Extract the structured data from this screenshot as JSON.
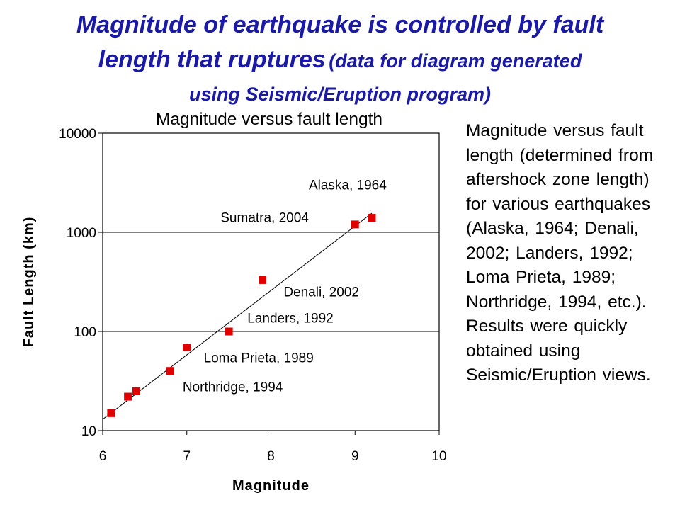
{
  "slide": {
    "title_line1": "Magnitude of earthquake is controlled by fault",
    "title_line2_main": "length that ruptures",
    "title_line2_sub": "(data for diagram generated",
    "title_line3": "using Seismic/Eruption program)"
  },
  "side_text": "Magnitude versus fault length (determined from aftershock zone length) for various earthquakes (Alaska, 1964; Denali, 2002; Landers, 1992; Loma Prieta, 1989; Northridge, 1994, etc.).  Results were quickly obtained using Seismic/Eruption views.",
  "chart_data": {
    "type": "scatter",
    "title": "Magnitude versus fault length",
    "xlabel": "Magnitude",
    "ylabel": "Fault Length (km)",
    "xlim": [
      6,
      10
    ],
    "ylim": [
      10,
      10000
    ],
    "y_scale": "log",
    "x_ticks": [
      "6",
      "7",
      "8",
      "9",
      "10"
    ],
    "y_ticks": [
      "10",
      "100",
      "1000",
      "10000"
    ],
    "grid": "horizontal",
    "marker_color": "#e00000",
    "points": [
      {
        "x": 6.1,
        "y": 15
      },
      {
        "x": 6.3,
        "y": 22
      },
      {
        "x": 6.4,
        "y": 25
      },
      {
        "x": 6.8,
        "y": 40
      },
      {
        "x": 7.0,
        "y": 69
      },
      {
        "x": 7.5,
        "y": 100
      },
      {
        "x": 7.9,
        "y": 330
      },
      {
        "x": 9.0,
        "y": 1200
      },
      {
        "x": 9.2,
        "y": 1400
      }
    ],
    "trendline": {
      "x": [
        6.0,
        9.2
      ],
      "y": [
        13,
        1560
      ]
    },
    "annotations": [
      {
        "label": "Alaska, 1964",
        "x": 8.45,
        "y": 2700
      },
      {
        "label": "Sumatra, 2004",
        "x": 7.4,
        "y": 1270
      },
      {
        "label": "Denali, 2002",
        "x": 8.15,
        "y": 225
      },
      {
        "label": "Landers, 1992",
        "x": 7.72,
        "y": 123
      },
      {
        "label": "Loma Prieta, 1989",
        "x": 7.2,
        "y": 49
      },
      {
        "label": "Northridge, 1994",
        "x": 6.95,
        "y": 25
      }
    ]
  }
}
